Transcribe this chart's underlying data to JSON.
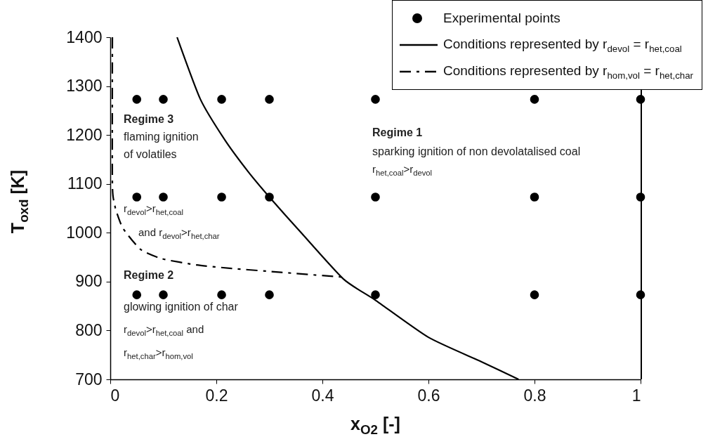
{
  "chart_data": {
    "type": "scatter",
    "xlabel": "x$_{O2}$ [-]",
    "ylabel": "T$_{oxd}$ [K]",
    "xlim": [
      0,
      1
    ],
    "xticks": [
      0,
      0.2,
      0.4,
      0.6,
      0.8,
      1
    ],
    "ylim": [
      700,
      1400
    ],
    "yticks": [
      700,
      800,
      900,
      1000,
      1100,
      1200,
      1300,
      1400
    ],
    "grid": false,
    "legend": "top right",
    "series": [
      {
        "name": "Experimental points",
        "marker": "circle",
        "color": "#000000",
        "x": [
          0.05,
          0.1,
          0.21,
          0.3,
          0.5,
          0.8,
          1,
          0.05,
          0.1,
          0.21,
          0.3,
          0.5,
          0.8,
          1,
          0.05,
          0.1,
          0.21,
          0.3,
          0.5,
          0.8,
          1
        ],
        "values": [
          1273,
          1273,
          1273,
          1273,
          1273,
          1273,
          1273,
          1073,
          1073,
          1073,
          1073,
          1073,
          1073,
          1073,
          873,
          873,
          873,
          873,
          873,
          873,
          873
        ]
      },
      {
        "name": "Conditions represented by r$_{devol}$ = r$_{het,coal}$",
        "type": "line",
        "line_style": "solid",
        "color": "#000000",
        "x": [
          0.126,
          0.17,
          0.216,
          0.26,
          0.3,
          0.36,
          0.44,
          0.5,
          0.6,
          0.7,
          0.77
        ],
        "values": [
          1400,
          1273,
          1190,
          1125,
          1073,
          1000,
          905,
          862,
          786,
          736,
          700
        ]
      },
      {
        "name": "Conditions represented by r$_{hom,vol}$ = r$_{het,char}$",
        "type": "line",
        "line_style": "dashed",
        "color": "#000000",
        "x": [
          0.004,
          0.004,
          0.008,
          0.011,
          0.024,
          0.057,
          0.097,
          0.163,
          0.229,
          0.322,
          0.441
        ],
        "values": [
          1400,
          1100,
          1060,
          1045,
          1009,
          966,
          947,
          934,
          927,
          919,
          909
        ]
      }
    ],
    "annotations": [
      "Regime 3",
      "flaming ignition",
      "of volatiles",
      "r$_{devol}$>r$_{het,coal}$",
      "and r$_{devol}$>r$_{het,char}$",
      "Regime 2",
      "glowing ignition of char",
      "r$_{devol}$>r$_{het,coal}$ and",
      "r$_{het,char}$>r$_{hom,vol}$",
      "Regime 1",
      "sparking ignition of non devolatalised coal",
      "r$_{het,coal}$>r$_{devol}$"
    ]
  }
}
